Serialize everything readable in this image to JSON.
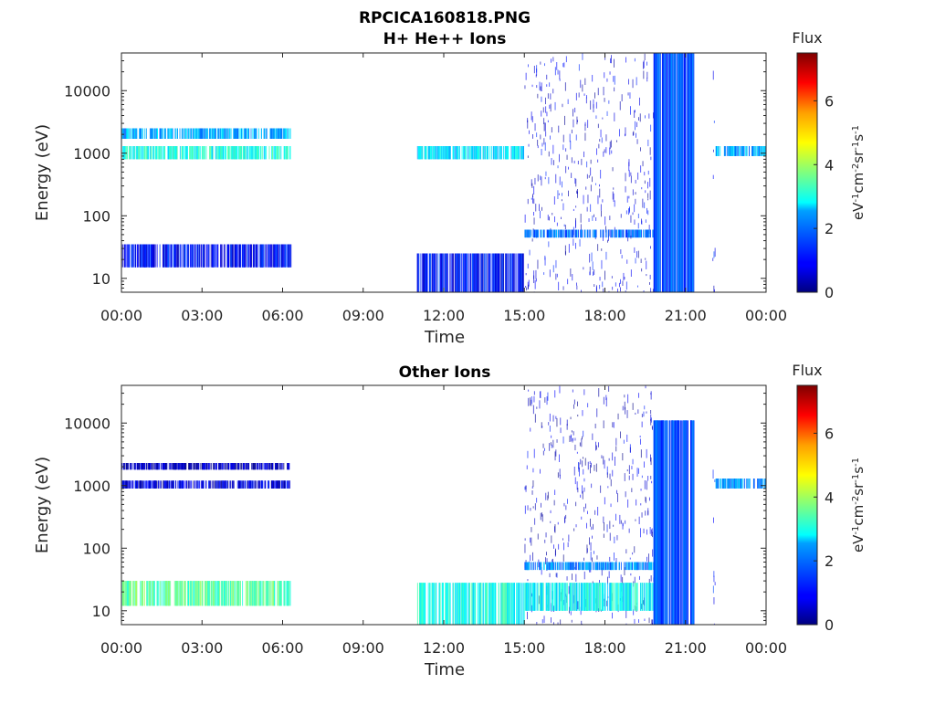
{
  "chart_data": [
    {
      "type": "heatmap",
      "title_line1": "RPCICA160818.PNG",
      "title_line2": "H+ He++ Ions",
      "xlabel": "Time",
      "ylabel": "Energy (eV)",
      "x_tick_labels": [
        "00:00",
        "03:00",
        "06:00",
        "09:00",
        "12:00",
        "15:00",
        "18:00",
        "21:00",
        "00:00"
      ],
      "x_ticks_hours": [
        0,
        3,
        6,
        9,
        12,
        15,
        18,
        21,
        24
      ],
      "xlim_hours": [
        0,
        24
      ],
      "y_scale": "log",
      "y_tick_labels": [
        "10",
        "100",
        "1000",
        "10000"
      ],
      "y_ticks": [
        10,
        100,
        1000,
        10000
      ],
      "ylim": [
        6,
        40000
      ],
      "colorbar": {
        "label": "Flux",
        "units": "eV-1cm-2sr-1s-1",
        "ticks": [
          "0",
          "2",
          "4",
          "6"
        ],
        "range": [
          0,
          7.5
        ],
        "colormap": "jet"
      },
      "features": [
        {
          "t_start": 0.0,
          "t_end": 6.3,
          "e_low": 800,
          "e_high": 1300,
          "level": 3.0
        },
        {
          "t_start": 0.0,
          "t_end": 6.3,
          "e_low": 1700,
          "e_high": 2500,
          "level": 2.2
        },
        {
          "t_start": 0.0,
          "t_end": 6.3,
          "e_low": 15,
          "e_high": 35,
          "level": 1.0
        },
        {
          "t_start": 11.0,
          "t_end": 15.0,
          "e_low": 800,
          "e_high": 1300,
          "level": 2.6
        },
        {
          "t_start": 11.0,
          "t_end": 15.0,
          "e_low": 6,
          "e_high": 25,
          "level": 1.0
        },
        {
          "t_start": 15.0,
          "t_end": 19.8,
          "e_low": 6,
          "e_high": 40000,
          "level": 0.7
        },
        {
          "t_start": 15.0,
          "t_end": 19.8,
          "e_low": 45,
          "e_high": 60,
          "level": 1.8
        },
        {
          "t_start": 19.8,
          "t_end": 21.3,
          "e_low": 6,
          "e_high": 40000,
          "level": 1.5
        },
        {
          "t_start": 22.0,
          "t_end": 22.1,
          "e_low": 6,
          "e_high": 40000,
          "level": 1.0
        },
        {
          "t_start": 22.1,
          "t_end": 24.0,
          "e_low": 900,
          "e_high": 1300,
          "level": 2.2
        }
      ]
    },
    {
      "type": "heatmap",
      "title_line1": "",
      "title_line2": "Other Ions",
      "xlabel": "Time",
      "ylabel": "Energy (eV)",
      "x_tick_labels": [
        "00:00",
        "03:00",
        "06:00",
        "09:00",
        "12:00",
        "15:00",
        "18:00",
        "21:00",
        "00:00"
      ],
      "x_ticks_hours": [
        0,
        3,
        6,
        9,
        12,
        15,
        18,
        21,
        24
      ],
      "xlim_hours": [
        0,
        24
      ],
      "y_scale": "log",
      "y_tick_labels": [
        "10",
        "100",
        "1000",
        "10000"
      ],
      "y_ticks": [
        10,
        100,
        1000,
        10000
      ],
      "ylim": [
        6,
        40000
      ],
      "colorbar": {
        "label": "Flux",
        "units": "eV-1cm-2sr-1s-1",
        "ticks": [
          "0",
          "2",
          "4",
          "6"
        ],
        "range": [
          0,
          7.5
        ],
        "colormap": "jet"
      },
      "features": [
        {
          "t_start": 0.0,
          "t_end": 6.3,
          "e_low": 12,
          "e_high": 30,
          "level": 3.5
        },
        {
          "t_start": 0.0,
          "t_end": 6.3,
          "e_low": 900,
          "e_high": 1200,
          "level": 0.7
        },
        {
          "t_start": 0.0,
          "t_end": 6.3,
          "e_low": 1800,
          "e_high": 2300,
          "level": 0.5
        },
        {
          "t_start": 11.0,
          "t_end": 15.0,
          "e_low": 6,
          "e_high": 28,
          "level": 3.0
        },
        {
          "t_start": 15.0,
          "t_end": 19.8,
          "e_low": 6,
          "e_high": 40000,
          "level": 0.6
        },
        {
          "t_start": 15.0,
          "t_end": 19.8,
          "e_low": 10,
          "e_high": 28,
          "level": 2.8
        },
        {
          "t_start": 15.0,
          "t_end": 19.8,
          "e_low": 45,
          "e_high": 60,
          "level": 2.0
        },
        {
          "t_start": 19.8,
          "t_end": 21.3,
          "e_low": 6,
          "e_high": 11000,
          "level": 1.5
        },
        {
          "t_start": 22.0,
          "t_end": 22.1,
          "e_low": 6,
          "e_high": 11000,
          "level": 1.0
        },
        {
          "t_start": 22.1,
          "t_end": 24.0,
          "e_low": 900,
          "e_high": 1300,
          "level": 2.0
        }
      ]
    }
  ]
}
